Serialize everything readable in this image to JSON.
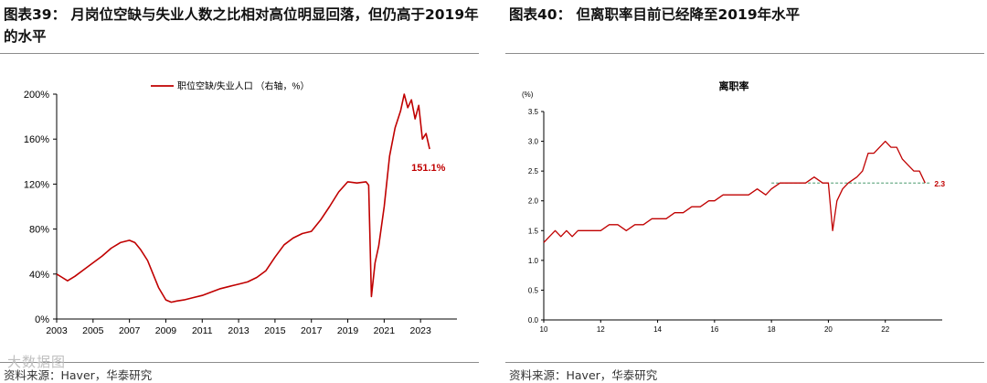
{
  "left": {
    "figure_title": "图表39： 月岗位空缺与失业人数之比相对高位明显回落，但仍高于2019年的水平",
    "source": "资料来源：Haver，华泰研究",
    "chart_data": {
      "type": "line",
      "title": "",
      "xlabel": "",
      "ylabel": "",
      "ylim": [
        0,
        200
      ],
      "y_ticks": [
        "0%",
        "40%",
        "80%",
        "120%",
        "160%",
        "200%"
      ],
      "x_ticks": [
        "2003",
        "2005",
        "2007",
        "2009",
        "2011",
        "2013",
        "2015",
        "2017",
        "2019",
        "2021",
        "2023"
      ],
      "xlim": [
        2003,
        2025
      ],
      "legend": "top-left",
      "annotation": "151.1%",
      "color": "#c00000",
      "series": [
        {
          "name": "职位空缺/失业人口 （右轴，%）",
          "x": [
            2003.0,
            2003.3,
            2003.6,
            2004.0,
            2004.5,
            2005.0,
            2005.5,
            2006.0,
            2006.5,
            2007.0,
            2007.3,
            2007.6,
            2008.0,
            2008.3,
            2008.6,
            2009.0,
            2009.3,
            2009.6,
            2010.0,
            2010.5,
            2011.0,
            2011.5,
            2012.0,
            2012.5,
            2013.0,
            2013.5,
            2014.0,
            2014.5,
            2015.0,
            2015.5,
            2016.0,
            2016.5,
            2017.0,
            2017.5,
            2018.0,
            2018.5,
            2019.0,
            2019.5,
            2020.0,
            2020.15,
            2020.3,
            2020.5,
            2020.7,
            2021.0,
            2021.3,
            2021.6,
            2021.9,
            2022.1,
            2022.3,
            2022.5,
            2022.7,
            2022.9,
            2023.1,
            2023.3,
            2023.5
          ],
          "y": [
            40,
            37,
            34,
            38,
            44,
            50,
            56,
            63,
            68,
            70,
            68,
            62,
            52,
            40,
            28,
            17,
            15,
            16,
            17,
            19,
            21,
            24,
            27,
            29,
            31,
            33,
            37,
            43,
            55,
            66,
            72,
            76,
            78,
            88,
            100,
            113,
            122,
            121,
            122,
            119,
            20,
            50,
            65,
            100,
            145,
            170,
            185,
            200,
            188,
            195,
            178,
            190,
            160,
            165,
            151.1
          ]
        }
      ]
    }
  },
  "right": {
    "figure_title": "图表40： 但离职率目前已经降至2019年水平",
    "source": "资料来源：Haver，华泰研究",
    "chart_data": {
      "type": "line",
      "title": "离职率",
      "unit": "(%)",
      "xlabel": "",
      "ylabel": "",
      "ylim": [
        0.0,
        3.5
      ],
      "y_ticks": [
        "0.0",
        "0.5",
        "1.0",
        "1.5",
        "2.0",
        "2.5",
        "3.0",
        "3.5"
      ],
      "x_ticks": [
        "10",
        "12",
        "14",
        "16",
        "18",
        "20",
        "22"
      ],
      "xlim": [
        2010,
        2024
      ],
      "reference_line": 2.3,
      "annotation": "2.3",
      "color": "#c00000",
      "series": [
        {
          "name": "",
          "x": [
            2010.0,
            2010.2,
            2010.4,
            2010.6,
            2010.8,
            2011.0,
            2011.2,
            2011.5,
            2011.8,
            2012.0,
            2012.3,
            2012.6,
            2012.9,
            2013.2,
            2013.5,
            2013.8,
            2014.0,
            2014.3,
            2014.6,
            2014.9,
            2015.2,
            2015.5,
            2015.8,
            2016.0,
            2016.3,
            2016.6,
            2016.9,
            2017.2,
            2017.5,
            2017.8,
            2018.0,
            2018.3,
            2018.6,
            2018.9,
            2019.2,
            2019.5,
            2019.8,
            2020.0,
            2020.15,
            2020.3,
            2020.5,
            2020.7,
            2021.0,
            2021.2,
            2021.4,
            2021.6,
            2021.8,
            2022.0,
            2022.2,
            2022.4,
            2022.6,
            2022.8,
            2023.0,
            2023.2,
            2023.4
          ],
          "y": [
            1.3,
            1.4,
            1.5,
            1.4,
            1.5,
            1.4,
            1.5,
            1.5,
            1.5,
            1.5,
            1.6,
            1.6,
            1.5,
            1.6,
            1.6,
            1.7,
            1.7,
            1.7,
            1.8,
            1.8,
            1.9,
            1.9,
            2.0,
            2.0,
            2.1,
            2.1,
            2.1,
            2.1,
            2.2,
            2.1,
            2.2,
            2.3,
            2.3,
            2.3,
            2.3,
            2.4,
            2.3,
            2.3,
            1.5,
            2.0,
            2.2,
            2.3,
            2.4,
            2.5,
            2.8,
            2.8,
            2.9,
            3.0,
            2.9,
            2.9,
            2.7,
            2.6,
            2.5,
            2.5,
            2.3
          ]
        }
      ]
    }
  },
  "watermark": "大数据图"
}
